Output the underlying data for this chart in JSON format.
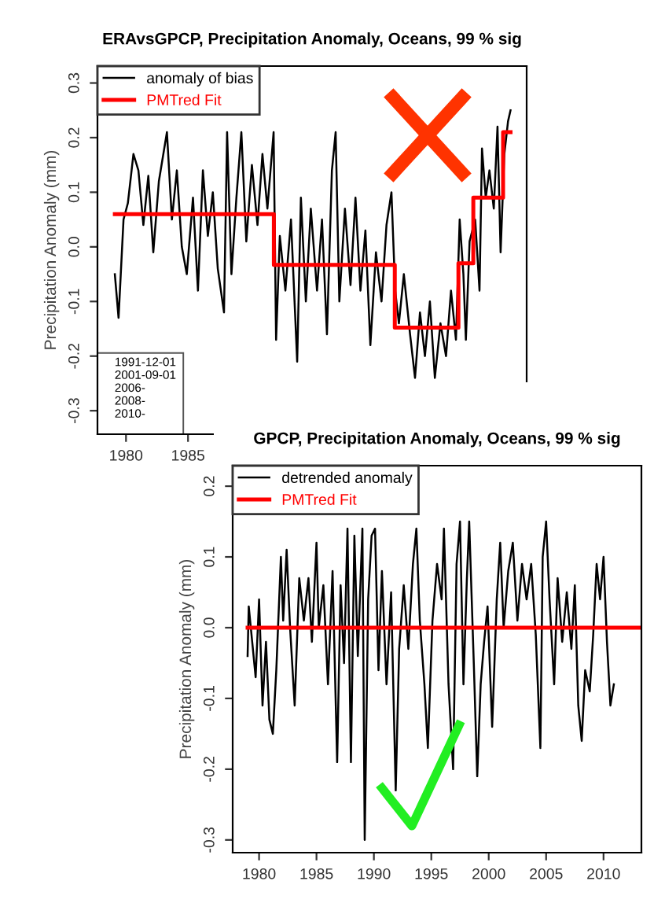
{
  "chart_data": [
    {
      "type": "line",
      "title": "ERAvsGPCP, Precipitation Anomaly, Oceans, 99 % sig",
      "ylabel": "Precipitation Anomaly (mm)",
      "xlim": [
        1977.7,
        2012.3
      ],
      "ylim": [
        -0.343,
        0.331
      ],
      "xticks": [
        1980,
        1985
      ],
      "yticks": [
        {
          "value": -0.3,
          "label": "-0.3"
        },
        {
          "value": -0.2,
          "label": "-0.2"
        },
        {
          "value": -0.1,
          "label": "-0.1"
        },
        {
          "value": 0.0,
          "label": "0.0"
        },
        {
          "value": 0.1,
          "label": "0.1"
        },
        {
          "value": 0.2,
          "label": "0.2"
        },
        {
          "value": 0.3,
          "label": "0.3"
        }
      ],
      "legend": "top left",
      "grid": false,
      "annotations": [
        "1991-12-01",
        "2001-09-01",
        "2006-",
        "2008-",
        "2010-"
      ],
      "series": [
        {
          "name": "anomaly of bias",
          "color": "#000000",
          "x": [
            1979.1,
            1979.4,
            1979.8,
            1980.15,
            1980.6,
            1981.0,
            1981.4,
            1981.8,
            1982.2,
            1982.65,
            1983.3,
            1983.7,
            1984.1,
            1984.5,
            1984.9,
            1985.4,
            1985.8,
            1986.2,
            1986.6,
            1987.0,
            1987.4,
            1987.9,
            1988.15,
            1988.5,
            1988.9,
            1989.3,
            1989.7,
            1990.15,
            1990.6,
            1991.0,
            1991.4,
            1991.9,
            1992.1,
            1992.4,
            1992.85,
            1993.3,
            1993.8,
            1994.1,
            1994.5,
            1994.9,
            1995.4,
            1995.8,
            1996.2,
            1996.6,
            1996.9,
            1997.2,
            1997.65,
            1998.1,
            1998.5,
            1998.9,
            1999.3,
            1999.7,
            2000.15,
            2000.6,
            2001.0,
            2001.4,
            2001.7,
            2002.0,
            2002.4,
            2002.9,
            2003.3,
            2003.7,
            2004.1,
            2004.5,
            2004.9,
            2005.35,
            2005.8,
            2006.2,
            2006.6,
            2006.9,
            2007.2,
            2007.4,
            2007.7,
            2008.15,
            2008.5,
            2008.7,
            2009.0,
            2009.3,
            2009.65,
            2009.95,
            2010.2,
            2010.5,
            2010.8,
            2011.0
          ],
          "values": [
            -0.05,
            -0.13,
            0.05,
            0.08,
            0.17,
            0.14,
            0.04,
            0.13,
            -0.01,
            0.12,
            0.21,
            0.05,
            0.14,
            0.0,
            -0.05,
            0.09,
            -0.08,
            0.14,
            0.02,
            0.1,
            -0.04,
            -0.12,
            0.21,
            -0.05,
            0.09,
            0.21,
            0.01,
            0.15,
            0.04,
            0.17,
            0.07,
            0.21,
            -0.17,
            0.02,
            -0.08,
            0.05,
            -0.21,
            0.09,
            -0.1,
            0.07,
            -0.08,
            0.05,
            -0.16,
            0.14,
            0.21,
            -0.1,
            0.07,
            -0.07,
            0.09,
            -0.08,
            0.03,
            -0.18,
            -0.01,
            -0.1,
            0.04,
            0.1,
            -0.08,
            -0.14,
            -0.05,
            -0.16,
            -0.24,
            -0.12,
            -0.2,
            -0.1,
            -0.24,
            -0.14,
            -0.2,
            -0.08,
            -0.17,
            0.05,
            -0.05,
            -0.17,
            0.01,
            0.05,
            -0.08,
            0.18,
            0.09,
            0.14,
            0.07,
            0.22,
            -0.01,
            0.17,
            0.23,
            0.25
          ]
        },
        {
          "name": "PMTred Fit",
          "color": "#ff0000",
          "type": "step",
          "x": [
            1979.1,
            1991.92,
            2001.67,
            2006.8,
            2008.0,
            2010.4,
            2011.0
          ],
          "values": [
            0.06,
            -0.033,
            -0.148,
            -0.03,
            0.09,
            0.21,
            0.21
          ]
        }
      ]
    },
    {
      "type": "line",
      "title": "GPCP, Precipitation Anomaly, Oceans, 99 % sig",
      "ylabel": "Precipitation Anomaly (mm)",
      "xlim": [
        1977.7,
        2013.3
      ],
      "ylim": [
        -0.318,
        0.229
      ],
      "xticks": [
        1980,
        1985,
        1990,
        1995,
        2000,
        2005,
        2010
      ],
      "yticks": [
        {
          "value": -0.3,
          "label": "-0.3"
        },
        {
          "value": -0.2,
          "label": "-0.2"
        },
        {
          "value": -0.1,
          "label": "-0.1"
        },
        {
          "value": 0.0,
          "label": "0.0"
        },
        {
          "value": 0.1,
          "label": "0.1"
        },
        {
          "value": 0.2,
          "label": "0.2"
        }
      ],
      "legend": "top left",
      "grid": false,
      "series": [
        {
          "name": "detrended anomaly",
          "color": "#000000",
          "x": [
            1979.0,
            1979.1,
            1979.4,
            1979.7,
            1980.0,
            1980.3,
            1980.6,
            1980.9,
            1981.2,
            1981.5,
            1981.9,
            1982.1,
            1982.4,
            1982.7,
            1983.1,
            1983.5,
            1983.9,
            1984.3,
            1984.6,
            1985.0,
            1985.2,
            1985.6,
            1986.0,
            1986.4,
            1986.8,
            1987.1,
            1987.4,
            1987.7,
            1988.0,
            1988.3,
            1988.6,
            1989.0,
            1989.2,
            1989.5,
            1989.8,
            1990.1,
            1990.4,
            1990.7,
            1991.1,
            1991.5,
            1991.9,
            1992.2,
            1992.6,
            1993.0,
            1993.4,
            1993.7,
            1994.0,
            1994.4,
            1994.7,
            1995.1,
            1995.5,
            1995.9,
            1996.1,
            1996.5,
            1996.9,
            1997.2,
            1997.5,
            1997.8,
            1998.1,
            1998.3,
            1998.7,
            1999.0,
            1999.3,
            1999.6,
            1999.9,
            2000.3,
            2000.7,
            2001.0,
            2001.3,
            2001.7,
            2002.1,
            2002.5,
            2002.9,
            2003.3,
            2003.7,
            2004.1,
            2004.5,
            2004.7,
            2005.0,
            2005.3,
            2005.7,
            2006.0,
            2006.4,
            2006.8,
            2007.2,
            2007.5,
            2007.8,
            2008.1,
            2008.4,
            2008.8,
            2009.1,
            2009.4,
            2009.7,
            2010.0,
            2010.3,
            2010.6,
            2010.9
          ],
          "values": [
            -0.04,
            0.03,
            -0.02,
            -0.07,
            0.04,
            -0.11,
            -0.02,
            -0.13,
            -0.15,
            -0.06,
            0.1,
            0.01,
            0.11,
            0.0,
            -0.11,
            0.07,
            0.01,
            0.07,
            -0.02,
            0.12,
            0.0,
            0.06,
            -0.08,
            0.08,
            -0.19,
            0.06,
            -0.05,
            0.14,
            -0.19,
            0.13,
            -0.04,
            0.14,
            -0.3,
            0.04,
            0.13,
            0.14,
            -0.06,
            0.08,
            -0.08,
            0.05,
            -0.23,
            -0.03,
            0.06,
            -0.03,
            0.09,
            0.14,
            0.01,
            -0.08,
            -0.17,
            0.01,
            0.09,
            0.04,
            0.14,
            -0.08,
            -0.2,
            0.09,
            0.15,
            -0.08,
            0.07,
            0.15,
            -0.05,
            -0.21,
            -0.08,
            -0.02,
            0.03,
            -0.14,
            0.04,
            0.12,
            0.0,
            0.08,
            0.12,
            0.01,
            0.09,
            0.04,
            0.09,
            -0.01,
            -0.17,
            0.1,
            0.15,
            0.04,
            -0.08,
            0.07,
            -0.02,
            0.05,
            -0.03,
            0.06,
            -0.11,
            -0.16,
            -0.06,
            -0.09,
            -0.01,
            0.09,
            0.04,
            0.1,
            -0.02,
            -0.11,
            -0.08
          ]
        },
        {
          "name": "PMTred Fit",
          "color": "#ff0000",
          "x": [
            1979.0,
            2013.3
          ],
          "values": [
            0.0,
            0.0
          ]
        }
      ]
    }
  ]
}
